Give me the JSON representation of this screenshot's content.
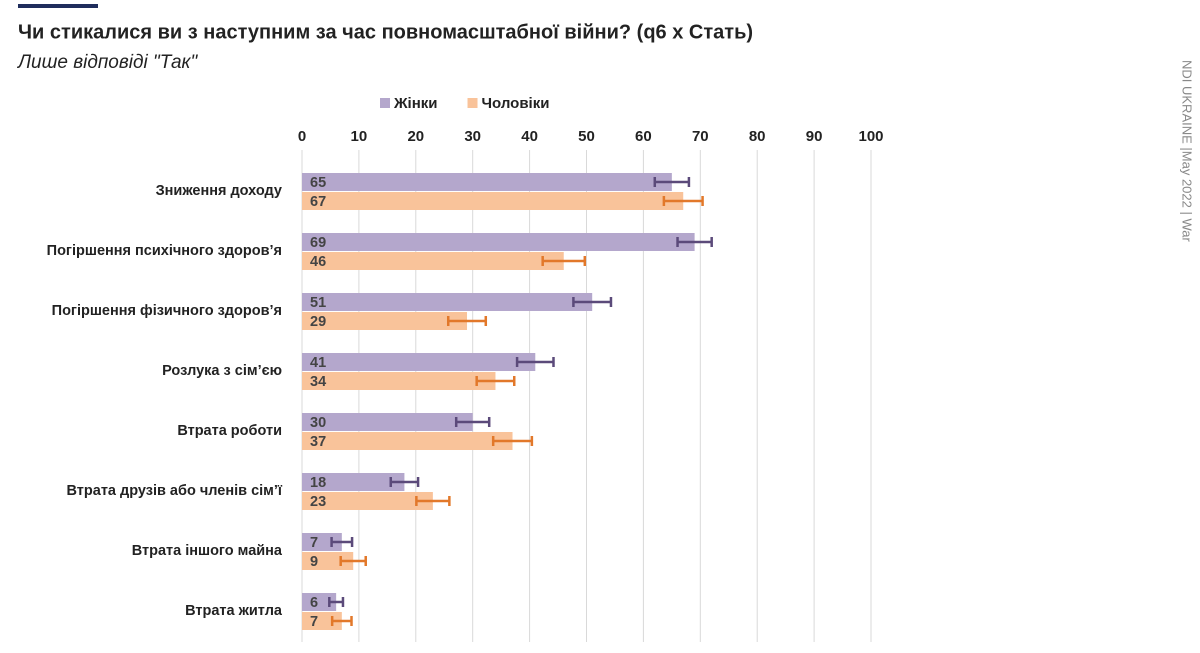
{
  "chart_data": {
    "type": "bar",
    "orientation": "horizontal",
    "title": "Чи стикалися ви з наступним за час повномасштабної війни? (q6 x Стать)",
    "subtitle": "Лише відповіді \"Так\"",
    "source": "NDI UKRAINE |May 2022 | War",
    "categories": [
      "Зниження доходу",
      "Погіршення психічного здоров’я",
      "Погіршення фізичного здоров’я",
      "Розлука з сім’єю",
      "Втрата роботи",
      "Втрата друзів або членів сім’ї",
      "Втрата іншого майна",
      "Втрата житла"
    ],
    "series": [
      {
        "name": "Жінки",
        "color": "#b4a7cc",
        "error_color": "#5b4a7a",
        "values": [
          65,
          69,
          51,
          41,
          30,
          18,
          7,
          6
        ],
        "errors": [
          3,
          3,
          3.3,
          3.2,
          2.9,
          2.4,
          1.8,
          1.2
        ]
      },
      {
        "name": "Чоловіки",
        "color": "#f9c39a",
        "error_color": "#e2782a",
        "values": [
          67,
          46,
          29,
          34,
          37,
          23,
          9,
          7
        ],
        "errors": [
          3.4,
          3.7,
          3.3,
          3.3,
          3.4,
          2.9,
          2.2,
          1.7
        ]
      }
    ],
    "xlim": [
      0,
      100
    ],
    "xticks": [
      0,
      10,
      20,
      30,
      40,
      50,
      60,
      70,
      80,
      90,
      100
    ],
    "grid": true,
    "legend": "top"
  }
}
